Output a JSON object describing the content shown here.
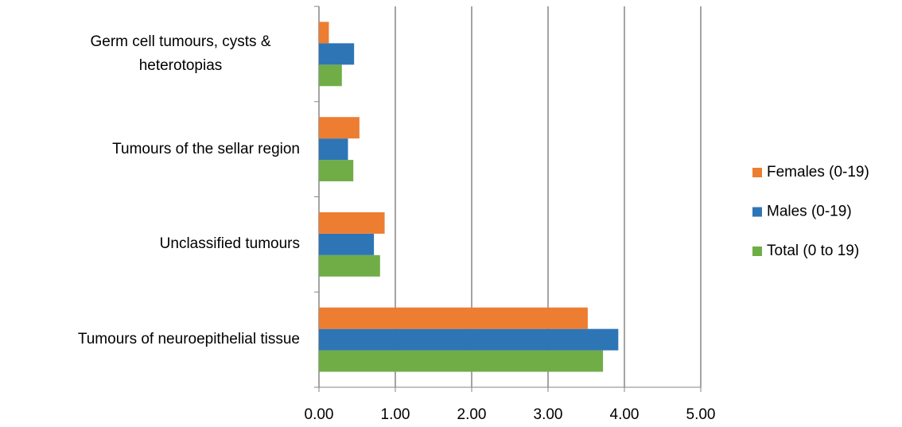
{
  "chart_data": {
    "type": "barh",
    "categories": [
      "Tumours of neuroepithelial tissue",
      "Unclassified tumours",
      "Tumours of the sellar region",
      "Germ cell tumours, cysts & heterotopias"
    ],
    "series": [
      {
        "name": "Total (0 to 19)",
        "color": "#70ad47",
        "values": [
          3.72,
          0.8,
          0.45,
          0.3
        ]
      },
      {
        "name": "Males (0-19)",
        "color": "#2e75b6",
        "values": [
          3.92,
          0.72,
          0.38,
          0.46
        ]
      },
      {
        "name": "Females (0-19)",
        "color": "#ed7d31",
        "values": [
          3.52,
          0.86,
          0.53,
          0.13
        ]
      }
    ],
    "xlim": [
      0,
      5
    ],
    "xticks": [
      {
        "value": 0,
        "label": "0.00"
      },
      {
        "value": 1,
        "label": "1.00"
      },
      {
        "value": 2,
        "label": "2.00"
      },
      {
        "value": 3,
        "label": "3.00"
      },
      {
        "value": 4,
        "label": "4.00"
      },
      {
        "value": 5,
        "label": "5.00"
      }
    ],
    "grid": true,
    "legend": "right"
  }
}
